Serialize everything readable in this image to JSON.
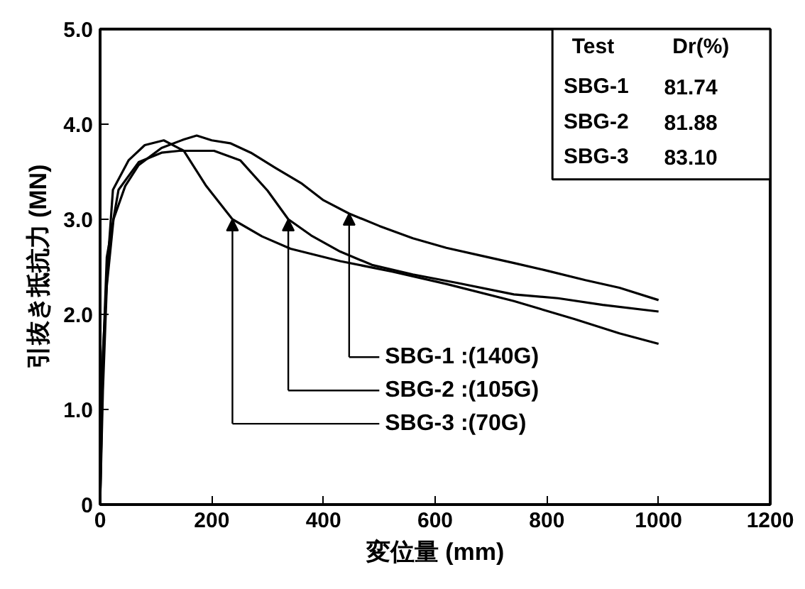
{
  "chart_data": {
    "type": "line",
    "xlabel": "変位量 (mm)",
    "ylabel": "引抜き抵抗力 (MN)",
    "xlim": [
      0,
      1200
    ],
    "ylim": [
      0,
      5
    ],
    "xticks": [
      0,
      200,
      400,
      600,
      800,
      1000,
      1200
    ],
    "yticks": [
      0,
      {
        "value": 1,
        "label": "1.0"
      },
      {
        "value": 2,
        "label": "2.0"
      },
      {
        "value": 3,
        "label": "3.0"
      },
      {
        "value": 4,
        "label": "4.0"
      },
      {
        "value": 5,
        "label": "5.0"
      }
    ],
    "grid": false,
    "marker": "none",
    "line_style": "solid",
    "series": [
      {
        "color": "#000000",
        "x": [
          0,
          5,
          12,
          24,
          45,
          69,
          110,
          150,
          173,
          200,
          233,
          270,
          314,
          360,
          400,
          446,
          500,
          560,
          620,
          680,
          741,
          800,
          869,
          930,
          1000
        ],
        "values": [
          0,
          1.2,
          2.3,
          3.0,
          3.35,
          3.57,
          3.75,
          3.84,
          3.88,
          3.83,
          3.8,
          3.7,
          3.54,
          3.38,
          3.2,
          3.06,
          2.93,
          2.8,
          2.7,
          2.62,
          2.54,
          2.46,
          2.36,
          2.28,
          2.15
        ]
      },
      {
        "color": "#000000",
        "x": [
          0,
          5,
          12,
          33,
          69,
          110,
          142,
          204,
          251,
          300,
          337,
          378,
          430,
          487,
          560,
          640,
          741,
          820,
          900,
          1000
        ],
        "values": [
          0,
          1.5,
          2.6,
          3.31,
          3.6,
          3.7,
          3.72,
          3.72,
          3.62,
          3.3,
          3.0,
          2.83,
          2.66,
          2.52,
          2.42,
          2.33,
          2.21,
          2.17,
          2.1,
          2.03
        ]
      },
      {
        "color": "#000000",
        "x": [
          0,
          5,
          15,
          23,
          51,
          80,
          114,
          150,
          190,
          237,
          290,
          341,
          430,
          523,
          620,
          741,
          850,
          930,
          1000
        ],
        "values": [
          0,
          1.6,
          2.65,
          3.31,
          3.62,
          3.78,
          3.83,
          3.72,
          3.35,
          3.0,
          2.82,
          2.69,
          2.56,
          2.45,
          2.32,
          2.14,
          1.95,
          1.8,
          1.69
        ]
      }
    ],
    "annotations": [
      "SBG-1  :(140G)",
      "SBG-2  :(105G)",
      "SBG-3  :(70G)",
      "Test",
      "Dr(%)",
      "SBG-1",
      "81.74",
      "SBG-2",
      "81.88",
      "SBG-3",
      "83.10"
    ]
  }
}
